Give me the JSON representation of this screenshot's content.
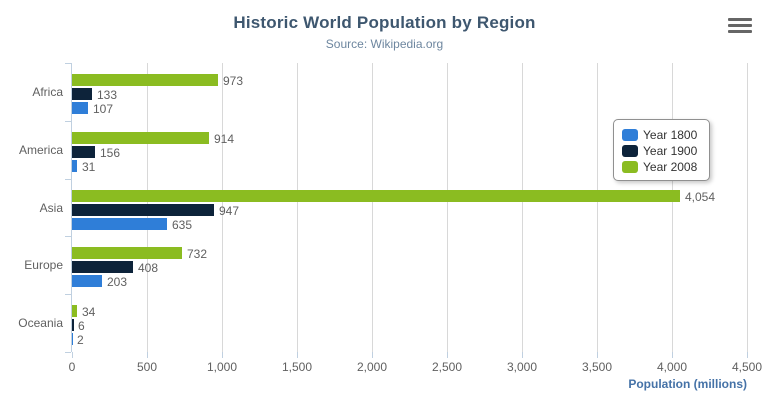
{
  "header": {
    "title": "Historic World Population by Region",
    "subtitle": "Source: Wikipedia.org"
  },
  "exporting": {
    "menu_icon": "hamburger-menu-icon"
  },
  "chart_data": {
    "type": "bar",
    "title": "Historic World Population by Region",
    "subtitle": "Source: Wikipedia.org",
    "categories": [
      "Africa",
      "America",
      "Asia",
      "Europe",
      "Oceania"
    ],
    "series": [
      {
        "name": "Year 1800",
        "color": "#2f7ed8",
        "values": [
          107,
          31,
          635,
          203,
          2
        ]
      },
      {
        "name": "Year 1900",
        "color": "#0d233a",
        "values": [
          133,
          156,
          947,
          408,
          6
        ]
      },
      {
        "name": "Year 2008",
        "color": "#8bbc21",
        "values": [
          973,
          914,
          4054,
          732,
          34
        ]
      }
    ],
    "bar_order_top_to_bottom": [
      "Year 2008",
      "Year 1900",
      "Year 1800"
    ],
    "data_labels": {
      "Year 1800": [
        "107",
        "31",
        "635",
        "203",
        "2"
      ],
      "Year 1900": [
        "133",
        "156",
        "947",
        "408",
        "6"
      ],
      "Year 2008": [
        "973",
        "914",
        "4,054",
        "732",
        "34"
      ]
    },
    "xlabel": "Population (millions)",
    "ylabel": "",
    "xlim": [
      0,
      4500
    ],
    "x_ticks": [
      0,
      500,
      1000,
      1500,
      2000,
      2500,
      3000,
      3500,
      4000,
      4500
    ],
    "x_tick_labels": [
      "0",
      "500",
      "1,000",
      "1,500",
      "2,000",
      "2,500",
      "3,000",
      "3,500",
      "4,000",
      "4,500"
    ],
    "grid": true,
    "legend_position": "right"
  },
  "colors": {
    "title": "#3e576f",
    "subtitle": "#6d869f",
    "axis_line": "#c0d0e0",
    "gridline": "#d8d8d8",
    "labels": "#606060",
    "axis_title": "#4572a7",
    "legend_border": "#909090",
    "legend_text": "#333333",
    "menu_icon": "#666666"
  }
}
